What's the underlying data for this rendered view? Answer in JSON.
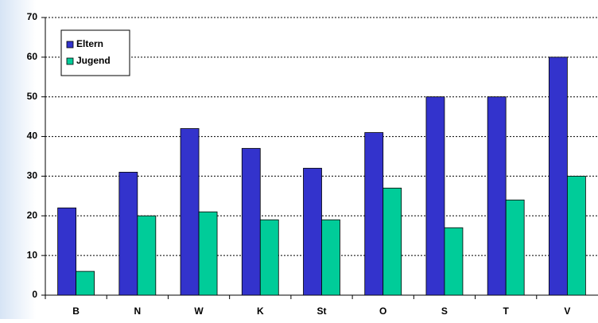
{
  "chart_data": {
    "type": "bar",
    "categories": [
      "B",
      "N",
      "W",
      "K",
      "St",
      "O",
      "S",
      "T",
      "V"
    ],
    "series": [
      {
        "name": "Eltern",
        "color": "#3333cc",
        "values": [
          22,
          31,
          42,
          37,
          32,
          41,
          50,
          50,
          60
        ]
      },
      {
        "name": "Jugend",
        "color": "#00cc99",
        "values": [
          6,
          20,
          21,
          19,
          19,
          27,
          17,
          24,
          30
        ]
      }
    ],
    "ylim": [
      0,
      70
    ],
    "yticks": [
      0,
      10,
      20,
      30,
      40,
      50,
      60,
      70
    ],
    "grid": true,
    "legend": "top-left"
  }
}
